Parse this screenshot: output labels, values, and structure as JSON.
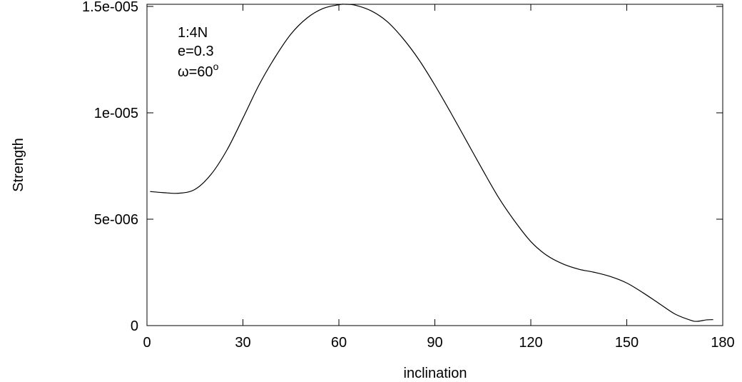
{
  "chart_data": {
    "type": "line",
    "xlabel": "inclination",
    "ylabel": "Strength",
    "xlim": [
      0,
      180
    ],
    "ylim": [
      0,
      1.51e-05
    ],
    "x_ticks": [
      {
        "value": 0,
        "label": "0"
      },
      {
        "value": 30,
        "label": "30"
      },
      {
        "value": 60,
        "label": "60"
      },
      {
        "value": 90,
        "label": "90"
      },
      {
        "value": 120,
        "label": "120"
      },
      {
        "value": 150,
        "label": "150"
      },
      {
        "value": 180,
        "label": "180"
      }
    ],
    "y_ticks": [
      {
        "value": 0,
        "label": "0"
      },
      {
        "value": 5e-06,
        "label": "5e-006"
      },
      {
        "value": 1e-05,
        "label": "1e-005"
      },
      {
        "value": 1.5e-05,
        "label": "1.5e-005"
      }
    ],
    "annotation": {
      "lines": [
        "1:4N",
        "e=0.3"
      ],
      "omega_symbol": "ω",
      "omega_value": "=60",
      "omega_unit": "o"
    },
    "grid": false,
    "series": [
      {
        "color": "#000000",
        "x": [
          1,
          5,
          10,
          15,
          20,
          25,
          30,
          35,
          40,
          45,
          50,
          55,
          60,
          62,
          65,
          70,
          75,
          80,
          85,
          90,
          95,
          100,
          105,
          110,
          115,
          120,
          125,
          130,
          135,
          140,
          145,
          150,
          155,
          160,
          165,
          170,
          172,
          175,
          177
        ],
        "y": [
          6.3e-06,
          6.25e-06,
          6.22e-06,
          6.4e-06,
          7.1e-06,
          8.25e-06,
          9.75e-06,
          1.13e-05,
          1.26e-05,
          1.37e-05,
          1.445e-05,
          1.49e-05,
          1.508e-05,
          1.51e-05,
          1.506e-05,
          1.48e-05,
          1.43e-05,
          1.35e-05,
          1.25e-05,
          1.13e-05,
          1e-05,
          8.65e-06,
          7.3e-06,
          6e-06,
          4.9e-06,
          3.95e-06,
          3.3e-06,
          2.9e-06,
          2.65e-06,
          2.5e-06,
          2.3e-06,
          2e-06,
          1.55e-06,
          1.05e-06,
          5.5e-07,
          2.5e-07,
          2e-07,
          2.7e-07,
          2.8e-07
        ]
      }
    ]
  }
}
